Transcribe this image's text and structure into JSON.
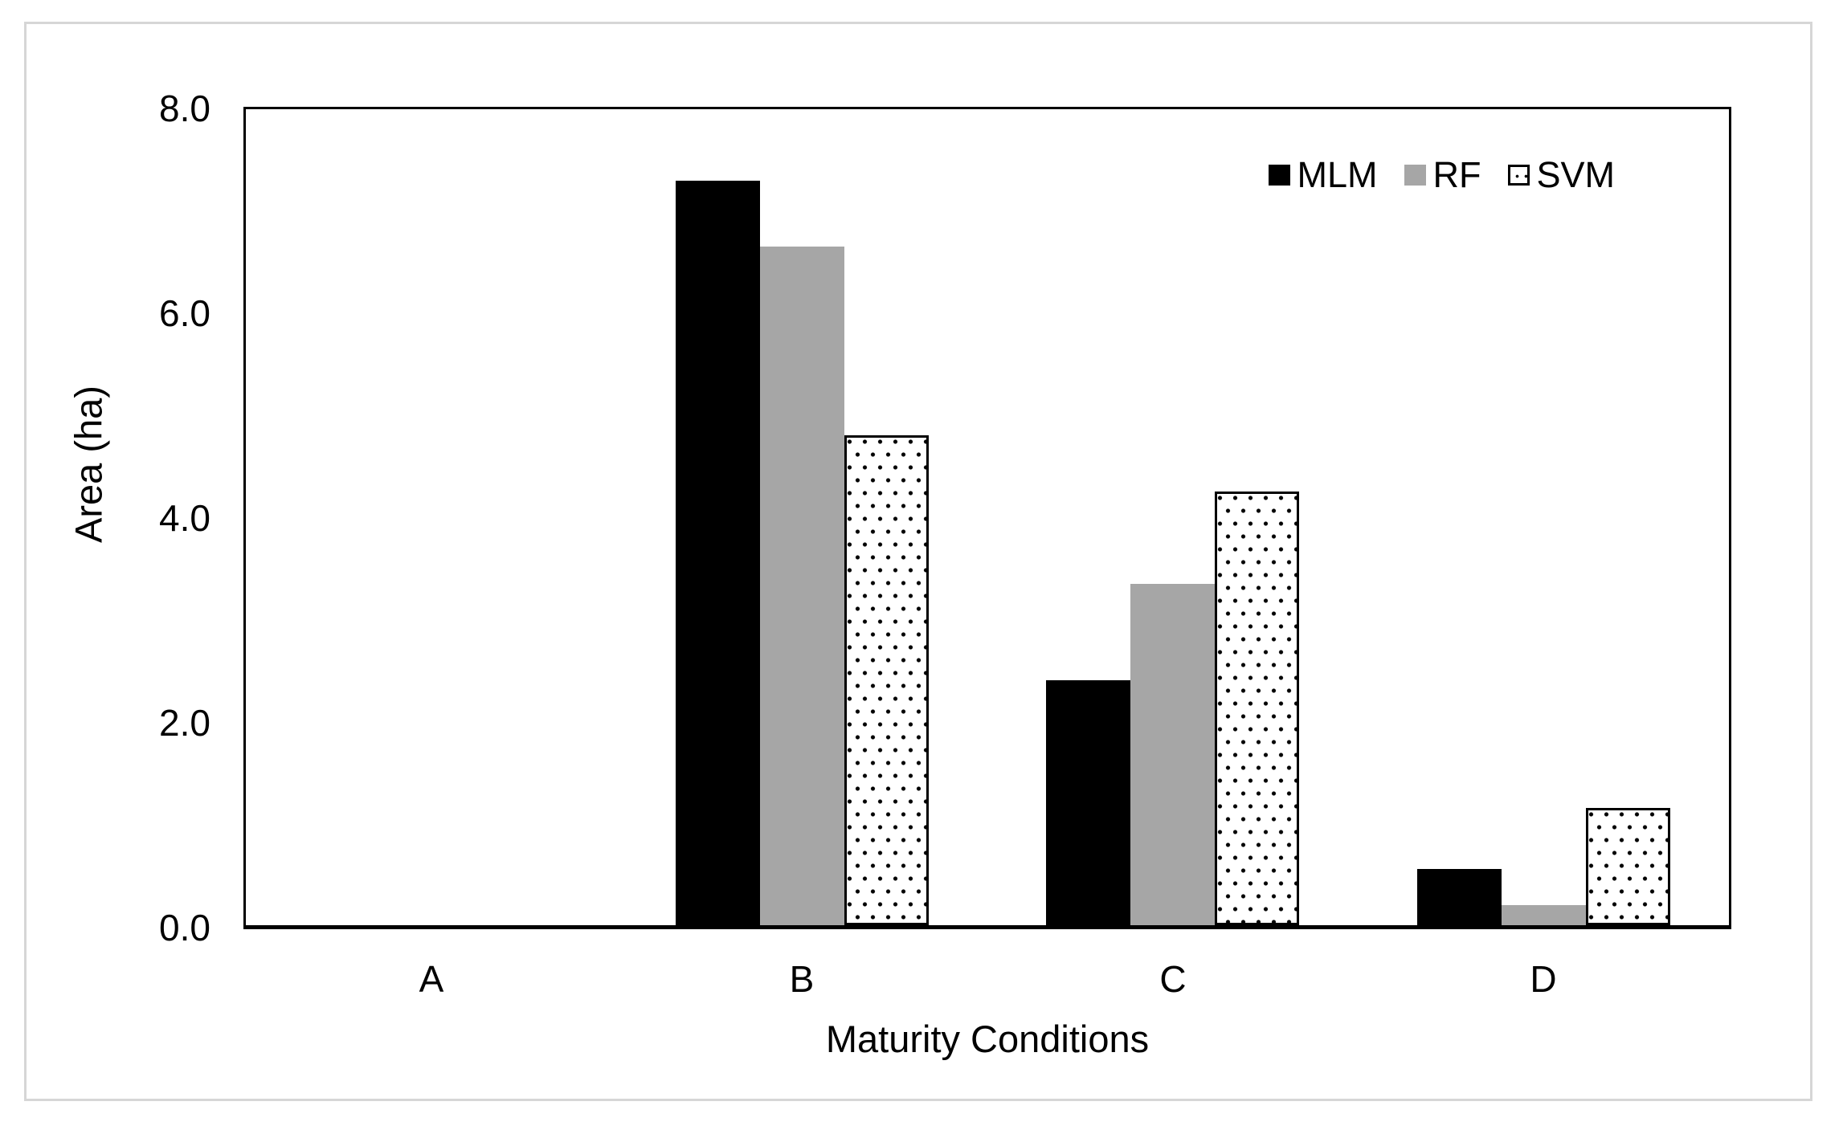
{
  "figure": {
    "background_color": "#ffffff",
    "border_color": "#d6d6d6"
  },
  "chart_data": {
    "type": "bar",
    "title": "",
    "categories": [
      "A",
      "B",
      "C",
      "D"
    ],
    "series": [
      {
        "name": "MLM",
        "fill": "solid",
        "color": "#000000",
        "values": [
          0.0,
          7.3,
          2.4,
          0.55
        ]
      },
      {
        "name": "RF",
        "fill": "solid",
        "color": "#a6a6a6",
        "values": [
          0.0,
          6.65,
          3.35,
          0.2
        ]
      },
      {
        "name": "SVM",
        "fill": "dotted",
        "color": "#ffffff",
        "dot_color": "#000000",
        "border_color": "#000000",
        "values": [
          0.0,
          4.8,
          4.25,
          1.15
        ]
      }
    ],
    "xlabel": "Maturity Conditions",
    "ylabel": "Area (ha)",
    "ylim": [
      0,
      8
    ],
    "yticks": [
      {
        "label": "0.0",
        "value": 0
      },
      {
        "label": "2.0",
        "value": 2
      },
      {
        "label": "4.0",
        "value": 4
      },
      {
        "label": "6.0",
        "value": 6
      },
      {
        "label": "8.0",
        "value": 8
      }
    ],
    "legend": {
      "position": "top-right",
      "entries": [
        "MLM",
        "RF",
        "SVM"
      ]
    },
    "grid": false
  }
}
